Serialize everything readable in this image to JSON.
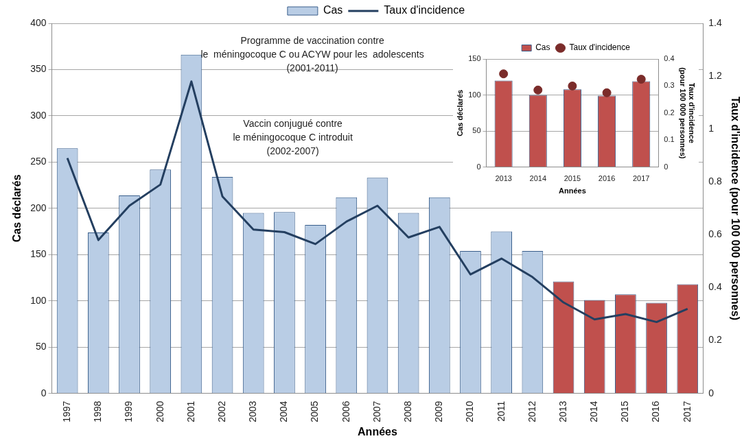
{
  "chart_data": [
    {
      "type": "bar",
      "xlabel": "Années",
      "ylabel": "Cas déclarés",
      "y2label": "Taux d'incidence (pour 100 000 personnes)",
      "categories": [
        "1997",
        "1998",
        "1999",
        "2000",
        "2001",
        "2002",
        "2003",
        "2004",
        "2005",
        "2006",
        "2007",
        "2008",
        "2009",
        "2010",
        "2011",
        "2012",
        "2013",
        "2014",
        "2015",
        "2016",
        "2017"
      ],
      "series": [
        {
          "name": "Cas",
          "colors": [
            "#b9cde5",
            "#b9cde5",
            "#b9cde5",
            "#b9cde5",
            "#b9cde5",
            "#b9cde5",
            "#b9cde5",
            "#b9cde5",
            "#b9cde5",
            "#b9cde5",
            "#b9cde5",
            "#b9cde5",
            "#b9cde5",
            "#b9cde5",
            "#b9cde5",
            "#b9cde5",
            "#c0504d",
            "#c0504d",
            "#c0504d",
            "#c0504d",
            "#c0504d"
          ],
          "values": [
            265,
            174,
            214,
            242,
            366,
            234,
            195,
            196,
            182,
            212,
            233,
            195,
            212,
            154,
            175,
            154,
            121,
            101,
            107,
            98,
            118
          ]
        },
        {
          "name": "Taux d'incidence",
          "type": "line",
          "axis": "y2",
          "color": "#243f60",
          "marker": "none",
          "values": [
            0.89,
            0.58,
            0.71,
            0.79,
            1.18,
            0.745,
            0.62,
            0.61,
            0.565,
            0.65,
            0.71,
            0.59,
            0.63,
            0.45,
            0.51,
            0.44,
            0.344,
            0.28,
            0.3,
            0.27,
            0.32
          ]
        }
      ],
      "ylim": [
        0,
        400
      ],
      "yticks": [
        0,
        50,
        100,
        150,
        200,
        250,
        300,
        350,
        400
      ],
      "y2lim": [
        0,
        1.4
      ],
      "y2ticks": [
        0,
        0.2,
        0.4,
        0.6,
        0.8,
        1,
        1.2,
        1.4
      ],
      "grid": "y",
      "legend": "top",
      "annotations": [
        "Programme de vaccination contre\nle  méningocoque C ou ACYW pour les  adolescents\n(2001-2011)",
        "Vaccin conjugué contre\nle méningocoque C introduit\n(2002-2007)"
      ]
    },
    {
      "type": "bar",
      "xlabel": "Années",
      "ylabel": "Cas déclarés",
      "y2label": "Taux d'incidence\n(pour 100 000 personnes)",
      "categories": [
        "2013",
        "2014",
        "2015",
        "2016",
        "2017"
      ],
      "series": [
        {
          "name": "Cas",
          "color": "#c0504d",
          "values": [
            120,
            100,
            108,
            99,
            119
          ]
        },
        {
          "name": "Taux d'incidence",
          "type": "scatter",
          "axis": "y2",
          "color": "#7b2c2a",
          "marker": "circle",
          "values": [
            0.345,
            0.285,
            0.3,
            0.275,
            0.325
          ]
        }
      ],
      "ylim": [
        0,
        150
      ],
      "yticks": [
        0,
        50,
        100,
        150
      ],
      "y2lim": [
        0,
        0.4
      ],
      "y2ticks": [
        0,
        0.1,
        0.2,
        0.3,
        0.4
      ],
      "grid": "y",
      "legend": "top"
    }
  ]
}
